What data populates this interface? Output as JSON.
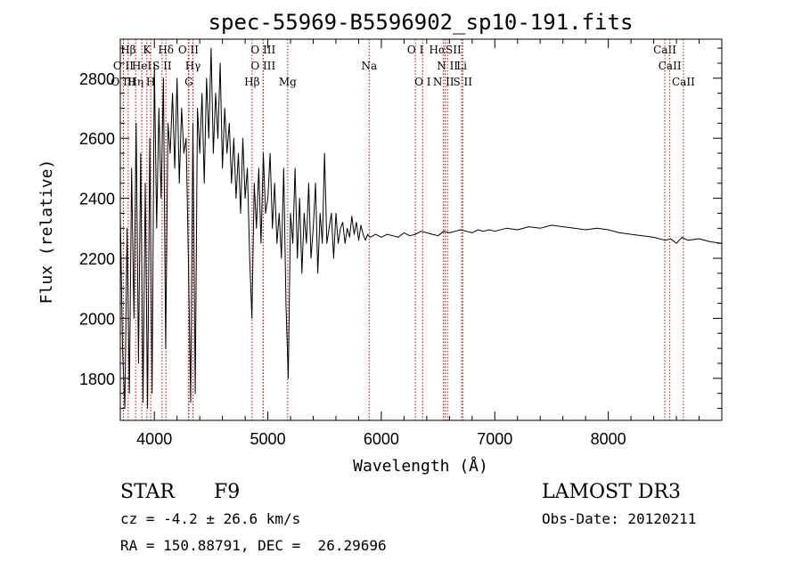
{
  "chart_data": {
    "type": "line",
    "title": "spec-55969-B5596902_sp10-191.fits",
    "xlabel": "Wavelength (Å)",
    "ylabel": "Flux (relative)",
    "xlim": [
      3700,
      9000
    ],
    "ylim": [
      1660,
      2930
    ],
    "xticks": [
      4000,
      5000,
      6000,
      7000,
      8000
    ],
    "yticks": [
      1800,
      2000,
      2200,
      2400,
      2600,
      2800
    ],
    "line_color": "#cc0000",
    "spectrum_color": "#000000",
    "series": [
      {
        "name": "spectrum",
        "x": [
          3700,
          3720,
          3740,
          3760,
          3780,
          3800,
          3820,
          3840,
          3860,
          3880,
          3900,
          3920,
          3940,
          3960,
          3980,
          4000,
          4020,
          4040,
          4060,
          4080,
          4100,
          4120,
          4140,
          4160,
          4180,
          4200,
          4220,
          4240,
          4260,
          4280,
          4300,
          4320,
          4340,
          4360,
          4380,
          4400,
          4420,
          4440,
          4460,
          4480,
          4500,
          4520,
          4540,
          4560,
          4580,
          4600,
          4620,
          4640,
          4660,
          4680,
          4700,
          4720,
          4740,
          4760,
          4780,
          4800,
          4820,
          4840,
          4860,
          4880,
          4900,
          4920,
          4940,
          4960,
          4980,
          5000,
          5020,
          5040,
          5060,
          5080,
          5100,
          5120,
          5140,
          5160,
          5180,
          5200,
          5220,
          5240,
          5260,
          5280,
          5300,
          5320,
          5340,
          5360,
          5380,
          5400,
          5420,
          5440,
          5460,
          5480,
          5500,
          5520,
          5540,
          5560,
          5580,
          5600,
          5620,
          5640,
          5660,
          5680,
          5700,
          5720,
          5740,
          5760,
          5780,
          5800,
          5820,
          5840,
          5860,
          5880,
          5900,
          5950,
          6000,
          6050,
          6100,
          6150,
          6200,
          6250,
          6300,
          6350,
          6400,
          6450,
          6500,
          6550,
          6600,
          6650,
          6700,
          6750,
          6800,
          6850,
          6900,
          6950,
          7000,
          7100,
          7200,
          7300,
          7400,
          7500,
          7600,
          7700,
          7800,
          7900,
          8000,
          8100,
          8200,
          8300,
          8400,
          8500,
          8550,
          8600,
          8650,
          8700,
          8800,
          8900,
          9000
        ],
        "y": [
          2350,
          1900,
          1700,
          2300,
          1750,
          2500,
          2000,
          2650,
          1850,
          2550,
          1720,
          2450,
          1700,
          2600,
          1750,
          2850,
          2300,
          2700,
          2400,
          2800,
          1900,
          2650,
          2550,
          2750,
          2500,
          2800,
          2450,
          2700,
          2550,
          2600,
          2200,
          1720,
          2650,
          1750,
          2700,
          2550,
          2750,
          2450,
          2800,
          2600,
          2900,
          2550,
          2750,
          2600,
          2850,
          2500,
          2700,
          2550,
          2650,
          2450,
          2600,
          2400,
          2550,
          2350,
          2600,
          2400,
          2500,
          2200,
          2000,
          2450,
          2300,
          2500,
          2250,
          2550,
          2350,
          2400,
          2550,
          2300,
          2450,
          2250,
          2350,
          2200,
          2500,
          2050,
          1800,
          2350,
          2250,
          2500,
          2200,
          2400,
          2150,
          2350,
          2250,
          2450,
          2200,
          2300,
          2450,
          2150,
          2350,
          2250,
          2550,
          2250,
          2300,
          2350,
          2200,
          2350,
          2250,
          2300,
          2320,
          2250,
          2300,
          2270,
          2340,
          2280,
          2320,
          2260,
          2310,
          2280,
          2260,
          2280,
          2270,
          2280,
          2270,
          2280,
          2275,
          2270,
          2285,
          2275,
          2280,
          2290,
          2285,
          2280,
          2275,
          2290,
          2285,
          2290,
          2295,
          2290,
          2285,
          2295,
          2290,
          2295,
          2290,
          2300,
          2295,
          2305,
          2300,
          2310,
          2305,
          2300,
          2295,
          2300,
          2295,
          2285,
          2280,
          2275,
          2270,
          2260,
          2265,
          2250,
          2270,
          2260,
          2265,
          2255,
          2250
        ]
      }
    ],
    "lines": [
      {
        "name": "Hbeta-top",
        "label": "Hβ",
        "x": 3770,
        "row": 0
      },
      {
        "name": "K",
        "label": "K",
        "x": 3934,
        "row": 0
      },
      {
        "name": "Hdelta",
        "label": "Hδ",
        "x": 4102,
        "row": 0
      },
      {
        "name": "OII-a",
        "label": "O II",
        "x": 4300,
        "row": 0
      },
      {
        "name": "OIII-a",
        "label": "O III",
        "x": 4959,
        "row": 0
      },
      {
        "name": "OI-a",
        "label": "O I",
        "x": 6300,
        "row": 0
      },
      {
        "name": "Halpha-SII",
        "label": "HαSII",
        "x": 6563,
        "row": 0
      },
      {
        "name": "CaII-a",
        "label": "CaII",
        "x": 8498,
        "row": 0
      },
      {
        "name": "OII-b",
        "label": "O II",
        "x": 3727,
        "row": 1
      },
      {
        "name": "HeI",
        "label": "HeI",
        "x": 3889,
        "row": 1
      },
      {
        "name": "SII-a",
        "label": "S II",
        "x": 4068,
        "row": 1
      },
      {
        "name": "Hgamma",
        "label": "Hγ",
        "x": 4340,
        "row": 1
      },
      {
        "name": "OIII-b",
        "label": "O III",
        "x": 4959,
        "row": 1
      },
      {
        "name": "Na",
        "label": "Na",
        "x": 5893,
        "row": 1
      },
      {
        "name": "NII-a",
        "label": "N II",
        "x": 6583,
        "row": 1
      },
      {
        "name": "Li",
        "label": "Li",
        "x": 6708,
        "row": 1
      },
      {
        "name": "CaII-b",
        "label": "CaII",
        "x": 8542,
        "row": 1
      },
      {
        "name": "OIII-c",
        "label": "O III",
        "x": 3727,
        "row": 2
      },
      {
        "name": "Heta",
        "label": "Hη",
        "x": 3835,
        "row": 2
      },
      {
        "name": "H",
        "label": "H",
        "x": 3968,
        "row": 2
      },
      {
        "name": "G",
        "label": "G",
        "x": 4304,
        "row": 2
      },
      {
        "name": "Hbeta",
        "label": "Hβ",
        "x": 4861,
        "row": 2
      },
      {
        "name": "Mg",
        "label": "Mg",
        "x": 5175,
        "row": 2
      },
      {
        "name": "OI-b",
        "label": "O I",
        "x": 6364,
        "row": 2
      },
      {
        "name": "NII-b",
        "label": "N II",
        "x": 6548,
        "row": 2
      },
      {
        "name": "SII-b",
        "label": "S II",
        "x": 6717,
        "row": 2
      },
      {
        "name": "CaII-c",
        "label": "CaII",
        "x": 8662,
        "row": 2
      }
    ]
  },
  "info": {
    "class_label": "STAR",
    "subclass": "F9",
    "survey": "LAMOST DR3",
    "redshift": "cz = -4.2 ± 26.6 km/s",
    "obs_date": "Obs-Date: 20120211",
    "coords": "RA = 150.88791, DEC =  26.29696"
  }
}
